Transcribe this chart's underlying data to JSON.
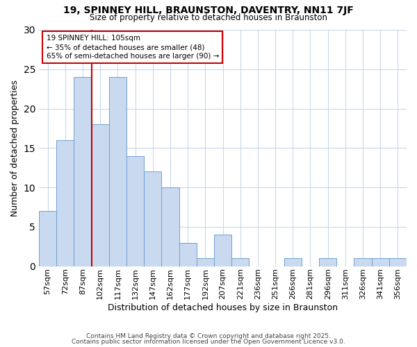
{
  "title": "19, SPINNEY HILL, BRAUNSTON, DAVENTRY, NN11 7JF",
  "subtitle": "Size of property relative to detached houses in Braunston",
  "xlabel": "Distribution of detached houses by size in Braunston",
  "ylabel": "Number of detached properties",
  "bin_labels": [
    "57sqm",
    "72sqm",
    "87sqm",
    "102sqm",
    "117sqm",
    "132sqm",
    "147sqm",
    "162sqm",
    "177sqm",
    "192sqm",
    "207sqm",
    "221sqm",
    "236sqm",
    "251sqm",
    "266sqm",
    "281sqm",
    "296sqm",
    "311sqm",
    "326sqm",
    "341sqm",
    "356sqm"
  ],
  "bar_heights": [
    7,
    16,
    24,
    18,
    24,
    14,
    12,
    10,
    3,
    1,
    4,
    1,
    0,
    0,
    1,
    0,
    1,
    0,
    1,
    1,
    1
  ],
  "bar_color": "#c9d9f0",
  "bar_edge_color": "#6fa0d0",
  "vline_x": 2.5,
  "vline_color": "#cc0000",
  "annotation_title": "19 SPINNEY HILL: 105sqm",
  "annotation_line1": "← 35% of detached houses are smaller (48)",
  "annotation_line2": "65% of semi-detached houses are larger (90) →",
  "annotation_box_color": "#cc0000",
  "ylim": [
    0,
    30
  ],
  "yticks": [
    0,
    5,
    10,
    15,
    20,
    25,
    30
  ],
  "footnote1": "Contains HM Land Registry data © Crown copyright and database right 2025.",
  "footnote2": "Contains public sector information licensed under the Open Government Licence v3.0.",
  "bg_color": "#ffffff",
  "grid_color": "#c8d8ec"
}
